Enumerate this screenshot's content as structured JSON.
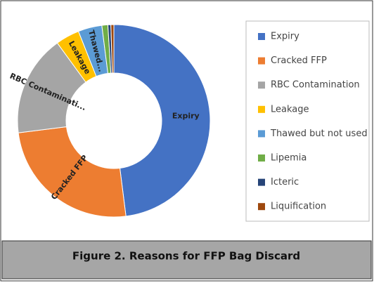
{
  "chart_data": {
    "type": "donut",
    "categories": [
      "Expiry",
      "Cracked FFP",
      "RBC Contamination",
      "Leakage",
      "Thawed but not used",
      "Lipemia",
      "Icteric",
      "Liquification"
    ],
    "values": [
      48,
      25,
      17,
      4,
      4,
      1,
      0.5,
      0.5
    ],
    "colors": [
      "#4472c4",
      "#ed7d31",
      "#a5a5a5",
      "#ffc000",
      "#5b9bd5",
      "#70ad47",
      "#264478",
      "#9e480e"
    ],
    "slice_labels": [
      "Expiry",
      "Cracked FFP",
      "RBC Contaminati...",
      "Leakage",
      "Thawed...",
      null,
      null,
      null
    ]
  },
  "caption": "Figure 2. Reasons for FFP Bag Discard"
}
